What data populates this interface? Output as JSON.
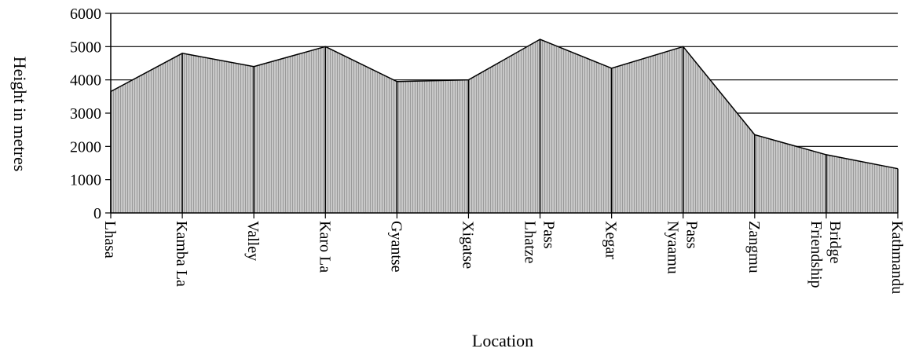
{
  "chart_data": {
    "type": "area",
    "title": "",
    "xlabel": "Location",
    "ylabel": "Height in metres",
    "ylim": [
      0,
      6000
    ],
    "yticks": [
      0,
      1000,
      2000,
      3000,
      4000,
      5000,
      6000
    ],
    "grid": true,
    "categories": [
      [
        "Lhasa"
      ],
      [
        "Kamba La"
      ],
      [
        "Valley"
      ],
      [
        "Karo La"
      ],
      [
        "Gyantse"
      ],
      [
        "Xigatse"
      ],
      [
        "Lhatze",
        "Pass"
      ],
      [
        "Xegar"
      ],
      [
        "Nyaamu",
        "Pass"
      ],
      [
        "Zangmu"
      ],
      [
        "Friendship",
        "Bridge"
      ],
      [
        "Kathmandu"
      ]
    ],
    "values": [
      3650,
      4800,
      4400,
      5000,
      3950,
      4000,
      5220,
      4350,
      5000,
      2350,
      1750,
      1330
    ],
    "fill_color": "#bdbdbd",
    "line_color": "#000000"
  }
}
